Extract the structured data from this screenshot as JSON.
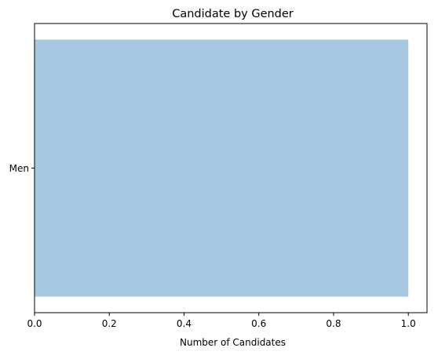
{
  "chart_data": {
    "type": "bar",
    "orientation": "horizontal",
    "title": "Candidate by Gender",
    "xlabel": "Number of Candidates",
    "ylabel": "",
    "categories": [
      "Men"
    ],
    "values": [
      1
    ],
    "xlim": [
      0,
      1.05
    ],
    "x_ticks": [
      0,
      0.2,
      0.4,
      0.6,
      0.8,
      1.0
    ],
    "x_tick_labels": [
      "0.0",
      "0.2",
      "0.4",
      "0.6",
      "0.8",
      "1.0"
    ],
    "bar_color": "#a6c7e0",
    "grid": false,
    "legend": "none"
  }
}
